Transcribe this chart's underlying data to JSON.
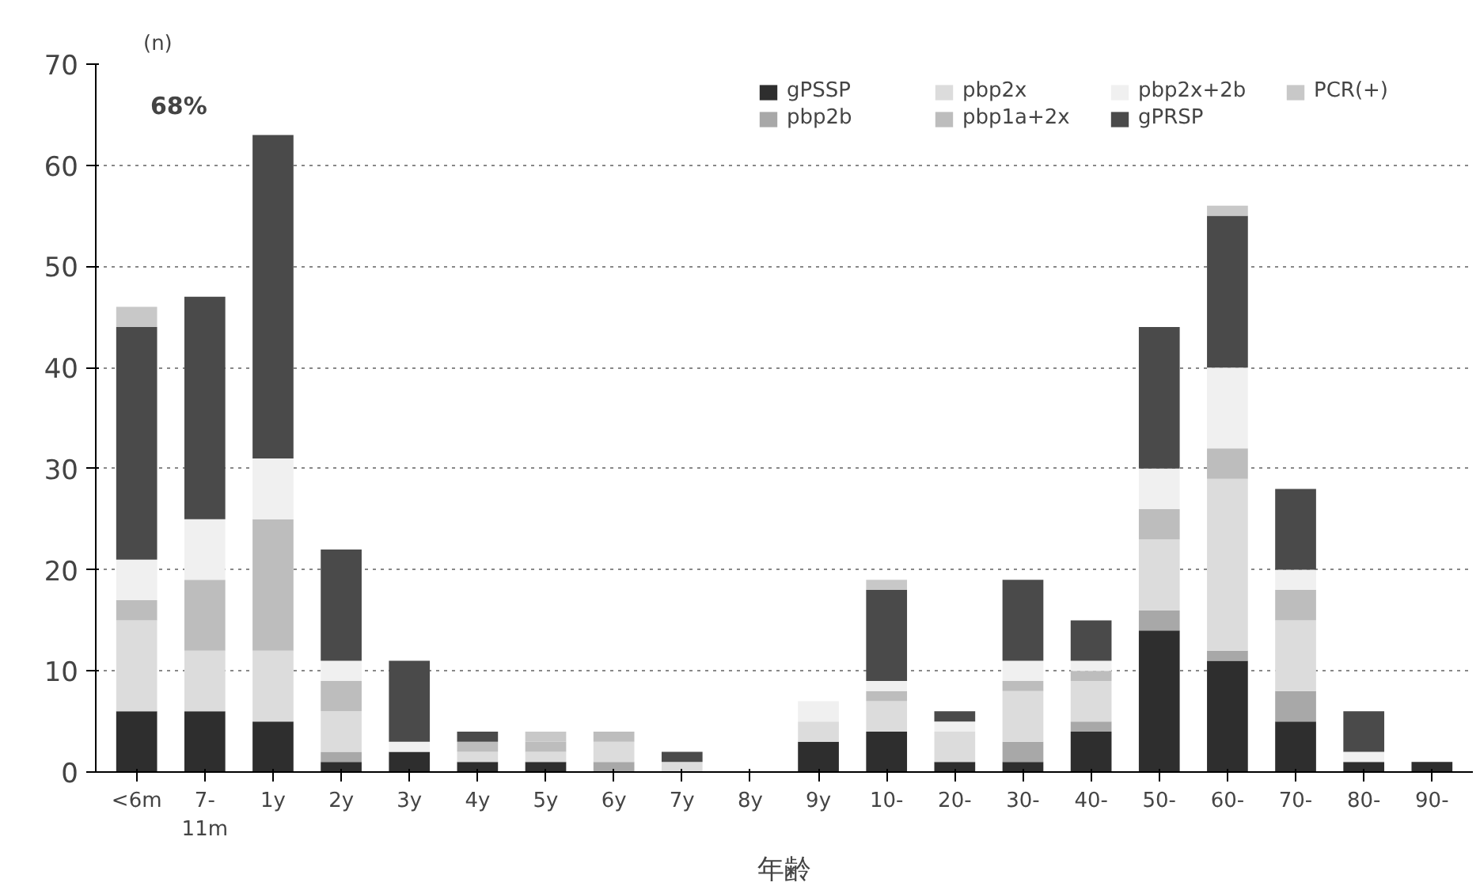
{
  "chart_data": {
    "type": "bar",
    "stacked": true,
    "xlabel": "年齢",
    "ylabel": "(n)",
    "categories": [
      "<6m",
      "7-\n11m",
      "1y",
      "2y",
      "3y",
      "4y",
      "5y",
      "6y",
      "7y",
      "8y",
      "9y",
      "10-",
      "20-",
      "30-",
      "40-",
      "50-",
      "60-",
      "70-",
      "80-",
      "90-"
    ],
    "series": [
      {
        "name": "gPSSP",
        "color": "#2e2e2e",
        "values": [
          6,
          6,
          5,
          1,
          2,
          1,
          1,
          0,
          0,
          0,
          3,
          4,
          1,
          1,
          4,
          14,
          11,
          5,
          1,
          1
        ]
      },
      {
        "name": "pbp2b",
        "color": "#a8a8a8",
        "values": [
          0,
          0,
          0,
          1,
          0,
          0,
          0,
          1,
          0,
          0,
          0,
          0,
          0,
          2,
          1,
          2,
          1,
          3,
          0,
          0
        ]
      },
      {
        "name": "pbp2x",
        "color": "#dcdcdc",
        "values": [
          9,
          6,
          7,
          4,
          0,
          1,
          1,
          2,
          1,
          0,
          2,
          3,
          3,
          5,
          4,
          7,
          17,
          7,
          0,
          0
        ]
      },
      {
        "name": "pbp1a+2x",
        "color": "#bdbdbd",
        "values": [
          2,
          7,
          13,
          3,
          0,
          1,
          1,
          1,
          0,
          0,
          0,
          1,
          0,
          1,
          1,
          3,
          3,
          3,
          0,
          0
        ]
      },
      {
        "name": "pbp2x+2b",
        "color": "#f0f0f0",
        "values": [
          4,
          6,
          6,
          2,
          1,
          0,
          0,
          0,
          0,
          0,
          2,
          1,
          1,
          2,
          1,
          4,
          8,
          2,
          1,
          0
        ]
      },
      {
        "name": "gPRSP",
        "color": "#4a4a4a",
        "values": [
          23,
          22,
          32,
          11,
          8,
          1,
          0,
          0,
          1,
          0,
          0,
          9,
          1,
          8,
          4,
          14,
          15,
          8,
          4,
          0
        ]
      },
      {
        "name": "PCR(+)",
        "color": "#c8c8c8",
        "values": [
          2,
          0,
          0,
          0,
          0,
          0,
          1,
          0,
          0,
          0,
          0,
          1,
          0,
          0,
          0,
          0,
          1,
          0,
          0,
          0
        ]
      }
    ],
    "ylim": [
      0,
      70
    ],
    "yticks": [
      0,
      10,
      20,
      30,
      40,
      50,
      60,
      70
    ],
    "grid": "y",
    "legend": "top right",
    "annotations": [
      "68%"
    ]
  }
}
